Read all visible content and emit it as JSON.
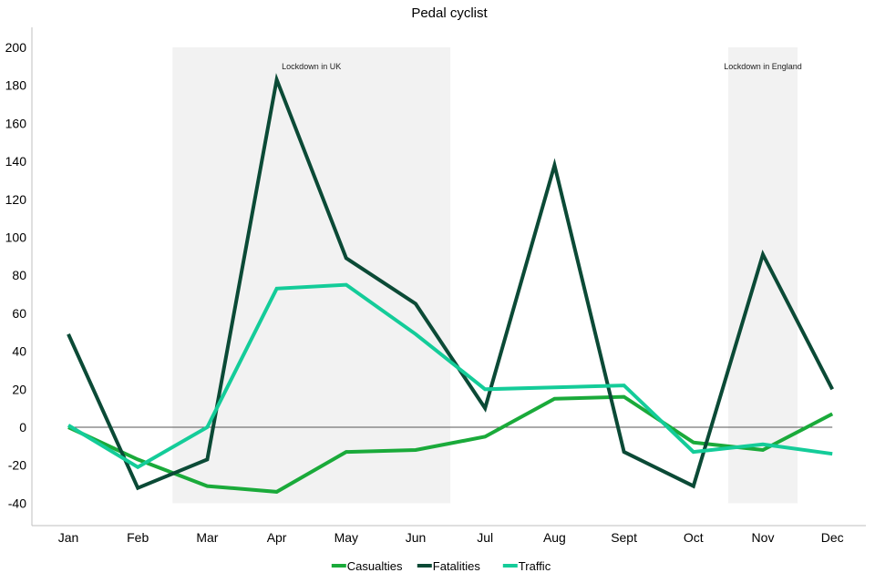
{
  "chart_data": {
    "type": "line",
    "title": "Pedal cyclist",
    "xlabel": "",
    "ylabel": "",
    "categories": [
      "Jan",
      "Feb",
      "Mar",
      "Apr",
      "May",
      "Jun",
      "Jul",
      "Aug",
      "Sept",
      "Oct",
      "Nov",
      "Dec"
    ],
    "ylim": [
      -50,
      210
    ],
    "yticks": [
      -40,
      -20,
      0,
      20,
      40,
      60,
      80,
      100,
      120,
      140,
      160,
      180,
      200
    ],
    "grid": false,
    "legend": "bottom",
    "series": [
      {
        "name": "Casualties",
        "color": "#1aaa3a",
        "values": [
          0,
          -17,
          -31,
          -34,
          -13,
          -12,
          -5,
          15,
          16,
          -8,
          -12,
          7
        ]
      },
      {
        "name": "Fatalities",
        "color": "#0b4a36",
        "values": [
          49,
          -32,
          -17,
          183,
          89,
          65,
          10,
          138,
          -13,
          -31,
          91,
          20
        ]
      },
      {
        "name": "Traffic",
        "color": "#14cc99",
        "values": [
          1,
          -21,
          0,
          73,
          75,
          49,
          20,
          21,
          22,
          -13,
          -9,
          -14
        ]
      }
    ],
    "annotations": [
      {
        "label": "Lockdown in UK",
        "x_start": "Mar",
        "x_end": "Jun",
        "y_range": [
          -40,
          200
        ]
      },
      {
        "label": "Lockdown in England",
        "x_start": "Nov",
        "x_end": "Nov",
        "y_range": [
          -40,
          200
        ]
      }
    ]
  }
}
